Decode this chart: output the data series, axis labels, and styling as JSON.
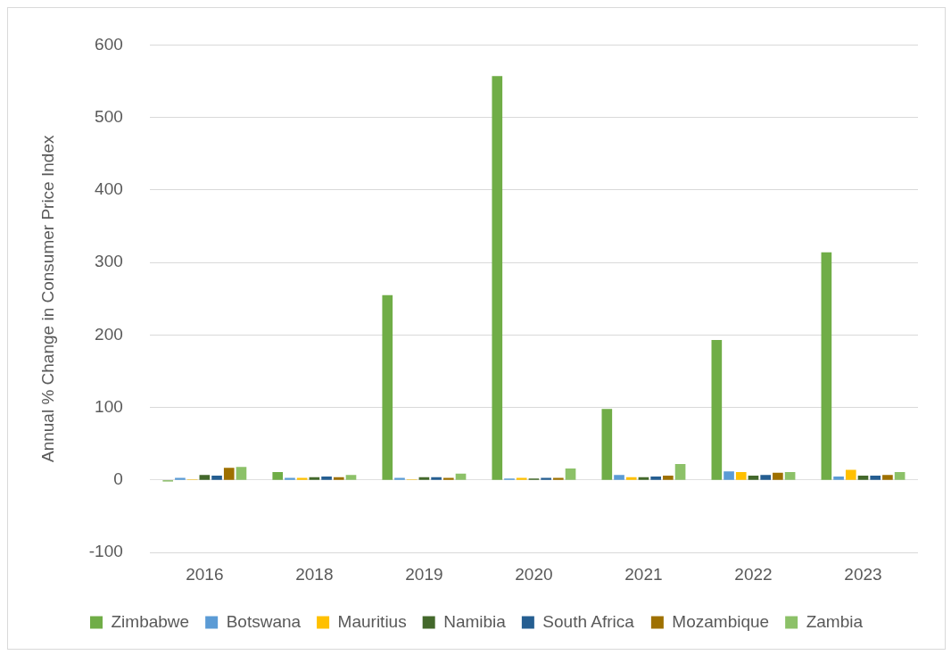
{
  "chart_data": {
    "type": "bar",
    "ylabel": "Annual % Change in Consumer Price Index",
    "categories": [
      "2016",
      "2018",
      "2019",
      "2020",
      "2021",
      "2022",
      "2023"
    ],
    "series": [
      {
        "name": "Zimbabwe",
        "color": "#70ad47",
        "values": [
          -2,
          11,
          255,
          557,
          98,
          193,
          314
        ]
      },
      {
        "name": "Botswana",
        "color": "#5b9bd5",
        "values": [
          3,
          3,
          3,
          2,
          7,
          12,
          5
        ]
      },
      {
        "name": "Mauritius",
        "color": "#ffc000",
        "values": [
          1,
          3,
          1,
          3,
          4,
          11,
          14
        ]
      },
      {
        "name": "Namibia",
        "color": "#43682b",
        "values": [
          7,
          4,
          4,
          2,
          4,
          6,
          6
        ]
      },
      {
        "name": "South Africa",
        "color": "#255e91",
        "values": [
          6,
          5,
          4,
          3,
          5,
          7,
          6
        ]
      },
      {
        "name": "Mozambique",
        "color": "#9e7000",
        "values": [
          17,
          4,
          3,
          3,
          6,
          10,
          7
        ]
      },
      {
        "name": "Zambia",
        "color": "#8cc168",
        "values": [
          18,
          7,
          9,
          16,
          22,
          11,
          11
        ]
      }
    ],
    "ylim": [
      -100,
      600
    ],
    "yticks": [
      -100,
      0,
      100,
      200,
      300,
      400,
      500,
      600
    ],
    "grid": "y",
    "legend": "bottom"
  }
}
